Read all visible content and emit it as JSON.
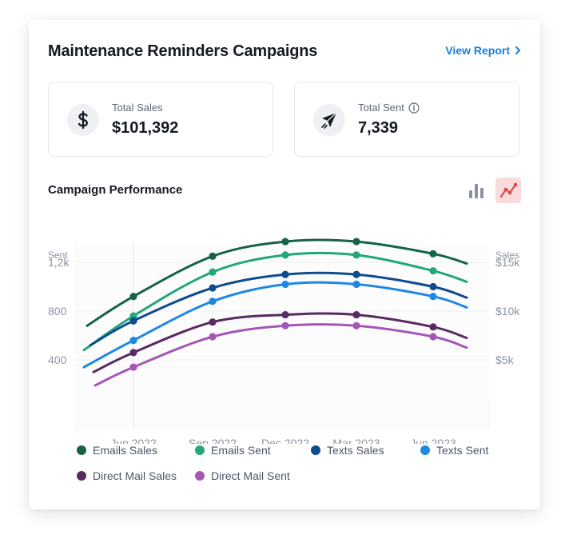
{
  "header": {
    "title": "Maintenance Reminders Campaigns",
    "view_report": "View Report"
  },
  "stats": [
    {
      "label": "Total Sales",
      "value": "$101,392",
      "icon": "dollar-icon"
    },
    {
      "label": "Total Sent",
      "value": "7,339",
      "icon": "paper-plane-icon",
      "info_icon": "info-icon"
    }
  ],
  "section": {
    "title": "Campaign Performance",
    "toggles": [
      "bar-chart-icon",
      "line-chart-icon"
    ],
    "active_toggle": "line-chart-icon",
    "active_color": "#e0474c"
  },
  "chart_data": {
    "type": "line",
    "left_axis": {
      "label": "Sent",
      "ticks": [
        "1,2k",
        "800",
        "400"
      ],
      "tick_values": [
        1200,
        800,
        400
      ],
      "range": [
        0,
        1600
      ]
    },
    "right_axis": {
      "label": "Sales",
      "ticks": [
        "$15k",
        "$10k",
        "$5k"
      ],
      "tick_values": [
        15000,
        10000,
        5000
      ]
    },
    "x_ticks": [
      "Jun 2022",
      "Sep 2022",
      "Dec 2022",
      "Mar 2023",
      "Jun 2023"
    ],
    "series": [
      {
        "name": "Emails Sales",
        "color": "#156446",
        "points": [
          920,
          1250,
          1370,
          1370,
          1270
        ],
        "start": 680,
        "end": 1190
      },
      {
        "name": "Emails Sent",
        "color": "#22a878",
        "points": [
          760,
          1120,
          1260,
          1260,
          1130
        ],
        "start": 480,
        "end": 1040
      },
      {
        "name": "Texts Sales",
        "color": "#0f4b8f",
        "points": [
          720,
          990,
          1100,
          1100,
          1000
        ],
        "start": 520,
        "end": 910
      },
      {
        "name": "Texts Sent",
        "color": "#1e88e5",
        "points": [
          560,
          880,
          1020,
          1020,
          920
        ],
        "start": 340,
        "end": 830
      },
      {
        "name": "Direct Mail Sales",
        "color": "#582a61",
        "points": [
          460,
          710,
          770,
          770,
          670
        ],
        "start": 300,
        "end": 580
      },
      {
        "name": "Direct Mail Sent",
        "color": "#a557b5",
        "points": [
          340,
          590,
          680,
          680,
          590
        ],
        "start": 190,
        "end": 500
      }
    ],
    "grid": true,
    "legend_position": "bottom"
  }
}
